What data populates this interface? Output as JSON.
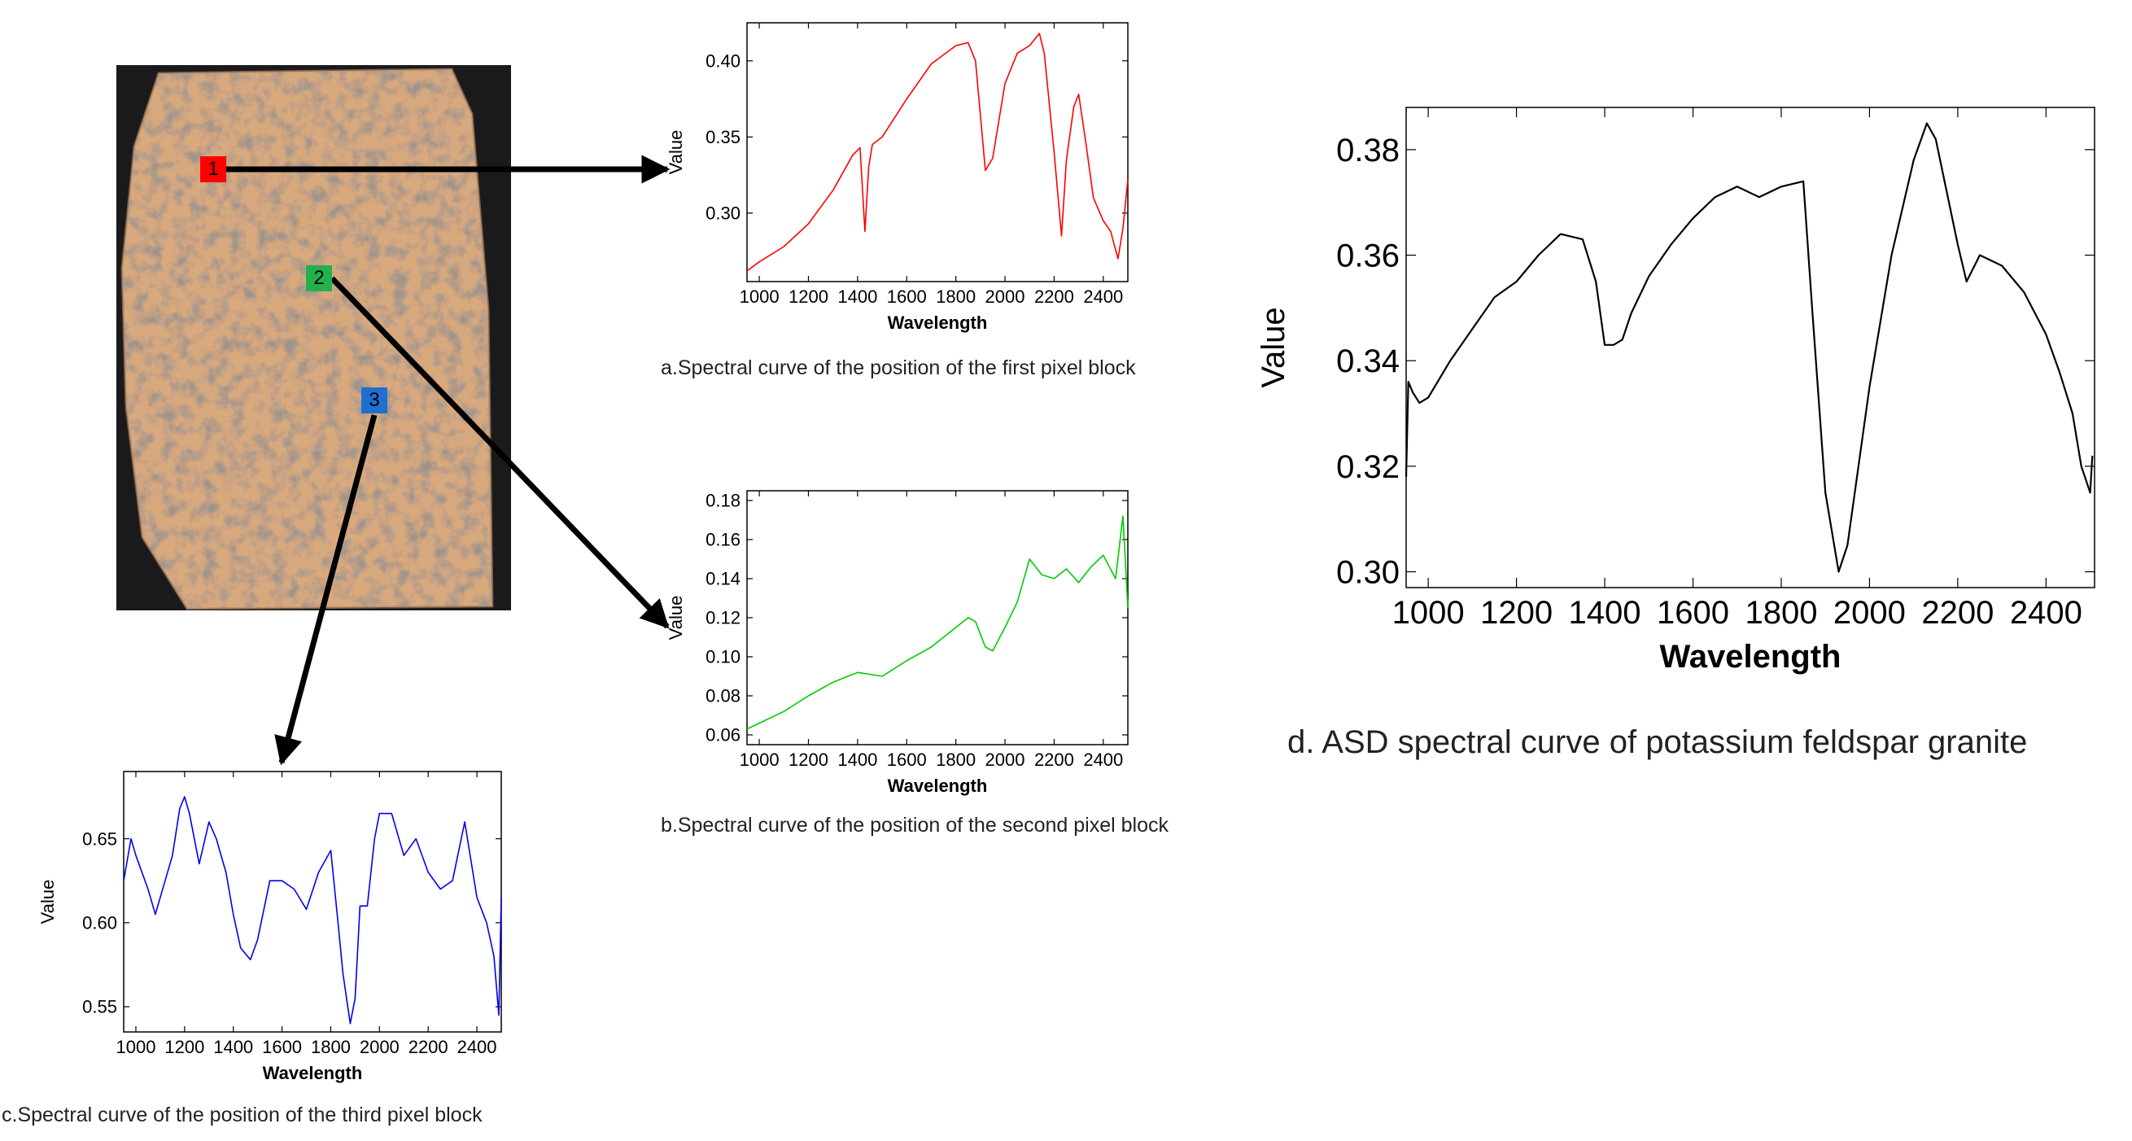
{
  "markers": [
    {
      "label": "1",
      "color": "#ff0000"
    },
    {
      "label": "2",
      "color": "#22b14c"
    },
    {
      "label": "3",
      "color": "#1f6fd0"
    }
  ],
  "captions": {
    "a": "a.Spectral curve of the position of the first pixel block",
    "b": "b.Spectral curve of the position of the second pixel block",
    "c": "c.Spectral curve of the position of the third pixel block",
    "d": "d. ASD spectral curve of potassium feldspar granite"
  },
  "chart_data": [
    {
      "id": "a",
      "type": "line",
      "xlabel": "Wavelength",
      "ylabel": "Value",
      "color": "#ff0000",
      "xlim": [
        950,
        2500
      ],
      "ylim": [
        0.255,
        0.425
      ],
      "xticks": [
        1000,
        1200,
        1400,
        1600,
        1800,
        2000,
        2200,
        2400
      ],
      "yticks": [
        0.3,
        0.35,
        0.4
      ],
      "ytick_labels": [
        "0.30",
        "0.35",
        "0.40"
      ],
      "series": [
        {
          "x": [
            950,
            1000,
            1100,
            1200,
            1300,
            1380,
            1410,
            1430,
            1445,
            1460,
            1500,
            1600,
            1700,
            1800,
            1850,
            1880,
            1920,
            1950,
            2000,
            2050,
            2100,
            2140,
            2160,
            2200,
            2230,
            2250,
            2280,
            2300,
            2330,
            2360,
            2400,
            2430,
            2460,
            2480,
            2500
          ],
          "y": [
            0.262,
            0.268,
            0.278,
            0.293,
            0.315,
            0.338,
            0.343,
            0.288,
            0.33,
            0.345,
            0.35,
            0.375,
            0.398,
            0.41,
            0.412,
            0.4,
            0.328,
            0.336,
            0.385,
            0.405,
            0.41,
            0.418,
            0.405,
            0.34,
            0.285,
            0.335,
            0.37,
            0.378,
            0.345,
            0.31,
            0.295,
            0.288,
            0.27,
            0.29,
            0.322
          ]
        }
      ]
    },
    {
      "id": "b",
      "type": "line",
      "xlabel": "Wavelength",
      "ylabel": "Value",
      "color": "#00cc00",
      "xlim": [
        950,
        2500
      ],
      "ylim": [
        0.055,
        0.185
      ],
      "xticks": [
        1000,
        1200,
        1400,
        1600,
        1800,
        2000,
        2200,
        2400
      ],
      "yticks": [
        0.06,
        0.08,
        0.1,
        0.12,
        0.14,
        0.16,
        0.18
      ],
      "ytick_labels": [
        "0.06",
        "0.08",
        "0.10",
        "0.12",
        "0.14",
        "0.16",
        "0.18"
      ],
      "series": [
        {
          "x": [
            950,
            1000,
            1100,
            1200,
            1300,
            1400,
            1500,
            1600,
            1700,
            1800,
            1850,
            1880,
            1920,
            1950,
            2000,
            2050,
            2100,
            2150,
            2200,
            2250,
            2300,
            2350,
            2400,
            2450,
            2480,
            2500
          ],
          "y": [
            0.063,
            0.066,
            0.072,
            0.08,
            0.087,
            0.092,
            0.09,
            0.098,
            0.105,
            0.115,
            0.12,
            0.118,
            0.105,
            0.103,
            0.115,
            0.128,
            0.15,
            0.142,
            0.14,
            0.145,
            0.138,
            0.146,
            0.152,
            0.14,
            0.172,
            0.125
          ]
        }
      ]
    },
    {
      "id": "c",
      "type": "line",
      "xlabel": "Wavelength",
      "ylabel": "Value",
      "color": "#0000ee",
      "xlim": [
        950,
        2500
      ],
      "ylim": [
        0.535,
        0.69
      ],
      "xticks": [
        1000,
        1200,
        1400,
        1600,
        1800,
        2000,
        2200,
        2400
      ],
      "yticks": [
        0.55,
        0.6,
        0.65
      ],
      "ytick_labels": [
        "0.55",
        "0.60",
        "0.65"
      ],
      "series": [
        {
          "x": [
            950,
            980,
            1000,
            1050,
            1080,
            1100,
            1150,
            1180,
            1200,
            1220,
            1260,
            1300,
            1330,
            1370,
            1400,
            1430,
            1470,
            1500,
            1550,
            1600,
            1650,
            1700,
            1750,
            1800,
            1830,
            1850,
            1880,
            1900,
            1920,
            1950,
            1980,
            2000,
            2050,
            2100,
            2150,
            2200,
            2250,
            2300,
            2350,
            2400,
            2440,
            2470,
            2490,
            2500
          ],
          "y": [
            0.625,
            0.65,
            0.64,
            0.62,
            0.605,
            0.615,
            0.64,
            0.668,
            0.675,
            0.665,
            0.635,
            0.66,
            0.65,
            0.63,
            0.605,
            0.585,
            0.578,
            0.59,
            0.625,
            0.625,
            0.62,
            0.608,
            0.63,
            0.643,
            0.6,
            0.57,
            0.54,
            0.555,
            0.61,
            0.61,
            0.65,
            0.665,
            0.665,
            0.64,
            0.65,
            0.63,
            0.62,
            0.625,
            0.66,
            0.615,
            0.6,
            0.58,
            0.545,
            0.615
          ]
        }
      ]
    },
    {
      "id": "d",
      "type": "line",
      "xlabel": "Wavelength",
      "ylabel": "Value",
      "color": "#000000",
      "xlim": [
        950,
        2510
      ],
      "ylim": [
        0.297,
        0.388
      ],
      "xticks": [
        1000,
        1200,
        1400,
        1600,
        1800,
        2000,
        2200,
        2400
      ],
      "yticks": [
        0.3,
        0.32,
        0.34,
        0.36,
        0.38
      ],
      "ytick_labels": [
        "0.30",
        "0.32",
        "0.34",
        "0.36",
        "0.38"
      ],
      "series": [
        {
          "x": [
            950,
            955,
            965,
            980,
            1000,
            1050,
            1100,
            1150,
            1200,
            1250,
            1300,
            1350,
            1380,
            1400,
            1420,
            1440,
            1460,
            1500,
            1550,
            1600,
            1650,
            1700,
            1750,
            1800,
            1850,
            1870,
            1900,
            1930,
            1950,
            2000,
            2050,
            2100,
            2130,
            2150,
            2200,
            2220,
            2250,
            2300,
            2350,
            2400,
            2430,
            2460,
            2480,
            2500,
            2505
          ],
          "y": [
            0.318,
            0.336,
            0.334,
            0.332,
            0.333,
            0.34,
            0.346,
            0.352,
            0.355,
            0.36,
            0.364,
            0.363,
            0.355,
            0.343,
            0.343,
            0.344,
            0.349,
            0.356,
            0.362,
            0.367,
            0.371,
            0.373,
            0.371,
            0.373,
            0.374,
            0.35,
            0.315,
            0.3,
            0.305,
            0.335,
            0.36,
            0.378,
            0.385,
            0.382,
            0.362,
            0.355,
            0.36,
            0.358,
            0.353,
            0.345,
            0.338,
            0.33,
            0.32,
            0.315,
            0.322
          ]
        }
      ]
    }
  ]
}
